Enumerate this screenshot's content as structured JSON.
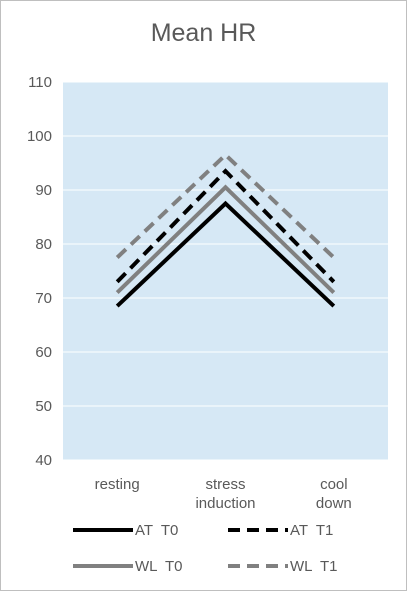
{
  "chart_data": {
    "type": "line",
    "title": "Mean HR",
    "xlabel": "",
    "ylabel": "",
    "categories": [
      "resting",
      "stress induction",
      "cool down"
    ],
    "ylim": [
      40,
      110
    ],
    "yticks": [
      40,
      50,
      60,
      70,
      80,
      90,
      100,
      110
    ],
    "grid": true,
    "plot_background": "#d6e8f5",
    "legend_position": "bottom",
    "series": [
      {
        "name": "AT  T0",
        "values": [
          68.5,
          87.5,
          68.5
        ],
        "color": "#000000",
        "style": "solid"
      },
      {
        "name": "AT  T1",
        "values": [
          73,
          93.5,
          73
        ],
        "color": "#000000",
        "style": "dashed"
      },
      {
        "name": "WL  T0",
        "values": [
          71,
          90.5,
          71
        ],
        "color": "#808080",
        "style": "solid"
      },
      {
        "name": "WL  T1",
        "values": [
          77.5,
          96.5,
          77.5
        ],
        "color": "#808080",
        "style": "dashed"
      }
    ]
  }
}
